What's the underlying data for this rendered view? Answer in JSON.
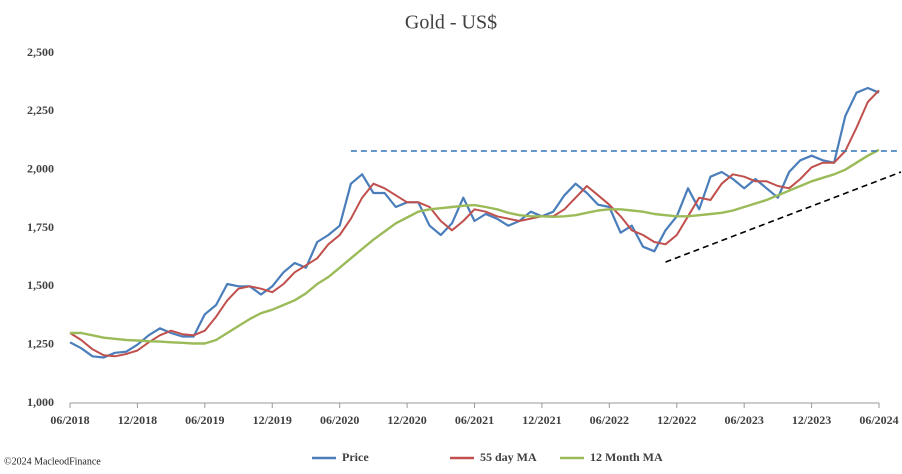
{
  "chart_data": {
    "type": "line",
    "title": "Gold - US$",
    "source": "©2024 MacleodFinance",
    "x": [
      "06/2018",
      "07/2018",
      "08/2018",
      "09/2018",
      "10/2018",
      "11/2018",
      "12/2018",
      "01/2019",
      "02/2019",
      "03/2019",
      "04/2019",
      "05/2019",
      "06/2019",
      "07/2019",
      "08/2019",
      "09/2019",
      "10/2019",
      "11/2019",
      "12/2019",
      "01/2020",
      "02/2020",
      "03/2020",
      "04/2020",
      "05/2020",
      "06/2020",
      "07/2020",
      "08/2020",
      "09/2020",
      "10/2020",
      "11/2020",
      "12/2020",
      "01/2021",
      "02/2021",
      "03/2021",
      "04/2021",
      "05/2021",
      "06/2021",
      "07/2021",
      "08/2021",
      "09/2021",
      "10/2021",
      "11/2021",
      "12/2021",
      "01/2022",
      "02/2022",
      "03/2022",
      "04/2022",
      "05/2022",
      "06/2022",
      "07/2022",
      "08/2022",
      "09/2022",
      "10/2022",
      "11/2022",
      "12/2022",
      "01/2023",
      "02/2023",
      "03/2023",
      "04/2023",
      "05/2023",
      "06/2023",
      "07/2023",
      "08/2023",
      "09/2023",
      "10/2023",
      "11/2023",
      "12/2023",
      "01/2024",
      "02/2024",
      "03/2024",
      "04/2024",
      "05/2024",
      "06/2024"
    ],
    "series": [
      {
        "name": "Price",
        "color": "#4a7ebb",
        "width": 2.2,
        "values": [
          1260,
          1235,
          1200,
          1195,
          1215,
          1220,
          1250,
          1290,
          1320,
          1300,
          1285,
          1285,
          1380,
          1420,
          1510,
          1500,
          1500,
          1465,
          1500,
          1560,
          1600,
          1580,
          1690,
          1720,
          1760,
          1940,
          1980,
          1900,
          1900,
          1840,
          1860,
          1860,
          1760,
          1720,
          1770,
          1880,
          1780,
          1810,
          1790,
          1760,
          1780,
          1820,
          1800,
          1820,
          1890,
          1940,
          1900,
          1850,
          1840,
          1730,
          1760,
          1670,
          1650,
          1740,
          1800,
          1920,
          1830,
          1970,
          1990,
          1960,
          1920,
          1960,
          1920,
          1880,
          1990,
          2040,
          2060,
          2040,
          2030,
          2230,
          2330,
          2350,
          2330
        ]
      },
      {
        "name": "55 day MA",
        "color": "#c0504d",
        "width": 2,
        "values": [
          1300,
          1270,
          1230,
          1205,
          1200,
          1210,
          1225,
          1260,
          1290,
          1310,
          1295,
          1290,
          1310,
          1370,
          1440,
          1490,
          1500,
          1490,
          1475,
          1510,
          1560,
          1590,
          1620,
          1680,
          1720,
          1790,
          1880,
          1940,
          1920,
          1890,
          1860,
          1860,
          1840,
          1780,
          1740,
          1780,
          1830,
          1820,
          1800,
          1790,
          1780,
          1790,
          1800,
          1800,
          1830,
          1880,
          1930,
          1890,
          1850,
          1800,
          1740,
          1720,
          1690,
          1680,
          1720,
          1800,
          1880,
          1870,
          1940,
          1980,
          1970,
          1950,
          1950,
          1930,
          1920,
          1960,
          2010,
          2030,
          2030,
          2080,
          2180,
          2290,
          2340
        ]
      },
      {
        "name": "12 Month MA",
        "color": "#9bbb59",
        "width": 2.4,
        "values": [
          1300,
          1300,
          1290,
          1280,
          1275,
          1270,
          1268,
          1265,
          1263,
          1260,
          1258,
          1255,
          1255,
          1270,
          1300,
          1330,
          1360,
          1385,
          1400,
          1420,
          1440,
          1470,
          1510,
          1540,
          1580,
          1620,
          1660,
          1700,
          1735,
          1770,
          1795,
          1820,
          1830,
          1835,
          1840,
          1845,
          1848,
          1840,
          1830,
          1815,
          1805,
          1800,
          1800,
          1798,
          1800,
          1805,
          1815,
          1825,
          1830,
          1830,
          1825,
          1820,
          1810,
          1805,
          1800,
          1800,
          1805,
          1810,
          1815,
          1825,
          1840,
          1855,
          1870,
          1890,
          1910,
          1930,
          1950,
          1965,
          1980,
          2000,
          2030,
          2060,
          2085
        ]
      }
    ],
    "trend_lines": [
      {
        "color": "#2e75b6",
        "x": [
          "07/2020",
          "08/2024"
        ],
        "values": [
          2080,
          2080
        ]
      },
      {
        "color": "#000000",
        "x": [
          "11/2022",
          "08/2024"
        ],
        "values": [
          1604,
          1990
        ]
      }
    ],
    "xlim": [
      "06/2018",
      "06/2024"
    ],
    "xticks": [
      "06/2018",
      "12/2018",
      "06/2019",
      "12/2019",
      "06/2020",
      "12/2020",
      "06/2021",
      "12/2021",
      "06/2022",
      "12/2022",
      "06/2023",
      "12/2023",
      "06/2024"
    ],
    "ylim": [
      1000,
      2500
    ],
    "yticks": [
      {
        "value": 1000,
        "label": "1,000"
      },
      {
        "value": 1250,
        "label": "1,250"
      },
      {
        "value": 1500,
        "label": "1,500"
      },
      {
        "value": 1750,
        "label": "1,750"
      },
      {
        "value": 2000,
        "label": "2,000"
      },
      {
        "value": 2250,
        "label": "2,250"
      },
      {
        "value": 2500,
        "label": "2,500"
      }
    ],
    "grid": false
  }
}
